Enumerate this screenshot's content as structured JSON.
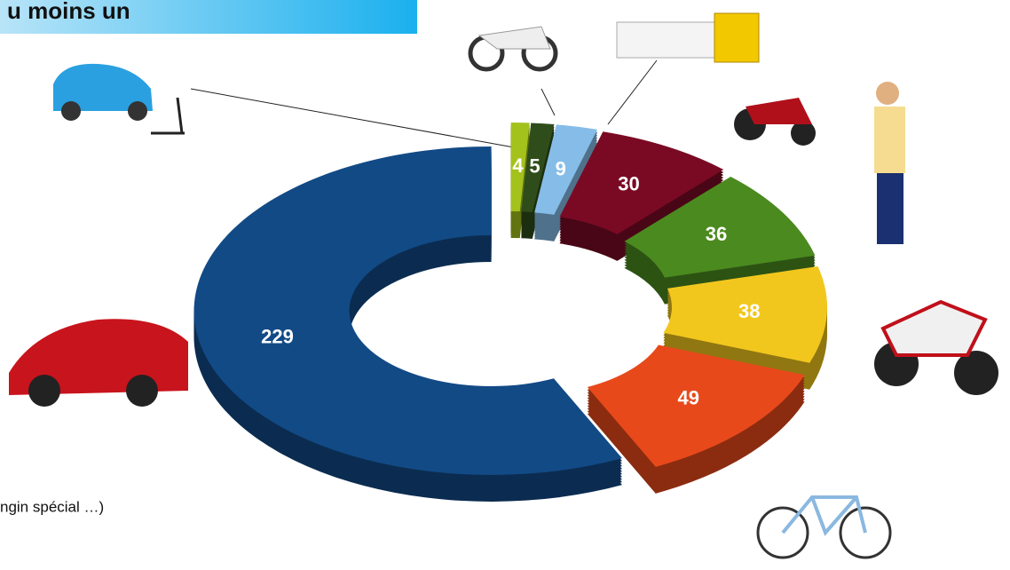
{
  "chart_data": {
    "type": "donut",
    "title": "u moins un",
    "note": "ngin spécial …)",
    "categories": [
      null,
      null,
      null,
      null,
      null,
      null,
      null,
      null
    ],
    "values": [
      4,
      5,
      9,
      30,
      36,
      38,
      49,
      229
    ],
    "colors": [
      "#a4c21c",
      "#2f4d1a",
      "#86bde8",
      "#7a0a24",
      "#4b8a1f",
      "#f2c71d",
      "#e8491b",
      "#124a86"
    ]
  }
}
